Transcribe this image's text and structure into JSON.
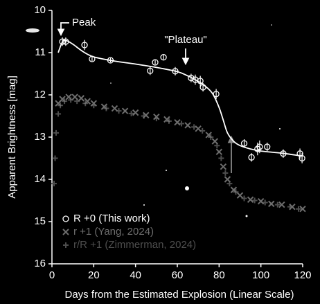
{
  "chart_data": {
    "type": "scatter",
    "xlabel": "Days from the Estimated Explosion (Linear Scale)",
    "ylabel": "Apparent Brightness [mag]",
    "xlim": [
      0,
      120
    ],
    "xticks": [
      0,
      20,
      40,
      60,
      80,
      100,
      120
    ],
    "ylim": [
      16,
      10
    ],
    "yticks": [
      10,
      11,
      12,
      13,
      14,
      15,
      16
    ],
    "annotations": [
      "Peak",
      "\"Plateau\""
    ],
    "series": [
      {
        "name": "R +0 (This work)",
        "marker": "circle",
        "color": "#ffffff",
        "x": [
          5,
          6.6,
          15.6,
          19.2,
          28,
          47,
          49.4,
          53.4,
          59,
          66.6,
          68.6,
          71,
          72.3,
          78.6,
          92,
          95.5,
          98.4,
          99.4,
          103,
          110.7,
          118.7,
          119.7
        ],
        "values": [
          10.74,
          10.74,
          10.82,
          11.15,
          11.18,
          11.43,
          11.23,
          11.11,
          11.44,
          11.6,
          11.64,
          11.67,
          11.82,
          11.98,
          13.15,
          13.48,
          13.28,
          13.23,
          13.23,
          13.39,
          13.39,
          13.5
        ],
        "errors": [
          0.1,
          0.1,
          0.12,
          0.05,
          0.05,
          0.1,
          0.05,
          0.05,
          0.1,
          0.1,
          0.12,
          0.12,
          0.1,
          0.12,
          0.1,
          0.1,
          0.15,
          0.15,
          0.1,
          0.1,
          0.12,
          0.12
        ]
      },
      {
        "name": "r  +1 (Yang, 2024)",
        "marker": "x",
        "color": "#6e6e6e",
        "x": [
          3,
          5,
          8,
          11,
          14,
          17,
          20,
          25,
          30,
          35,
          40,
          45,
          50,
          55,
          60,
          65,
          70,
          75,
          78,
          80,
          82,
          84,
          87,
          90,
          95,
          100,
          105,
          110,
          115,
          120
        ],
        "values": [
          12.2,
          12.1,
          12.05,
          12.05,
          12.08,
          12.15,
          12.2,
          12.28,
          12.32,
          12.38,
          12.42,
          12.48,
          12.52,
          12.58,
          12.65,
          12.72,
          12.8,
          12.95,
          13.1,
          13.35,
          13.7,
          14.0,
          14.25,
          14.38,
          14.48,
          14.52,
          14.58,
          14.6,
          14.65,
          14.7
        ]
      },
      {
        "name": "r/R +1 (Zimmerman, 2024)",
        "marker": "plus",
        "color": "#4e4e4e",
        "x": [
          1,
          1.5,
          2,
          3,
          4,
          6,
          9,
          12,
          16,
          20,
          26,
          32,
          38,
          44,
          50,
          56,
          62,
          68,
          72,
          76,
          79,
          81,
          83,
          85,
          88,
          92,
          97,
          102,
          108,
          114,
          118
        ],
        "values": [
          14.1,
          13.5,
          12.9,
          12.45,
          12.25,
          12.15,
          12.12,
          12.15,
          12.2,
          12.25,
          12.32,
          12.38,
          12.44,
          12.5,
          12.56,
          12.62,
          12.68,
          12.76,
          12.85,
          13.0,
          13.2,
          13.5,
          13.85,
          14.1,
          14.3,
          14.45,
          14.5,
          14.55,
          14.6,
          14.65,
          14.7
        ]
      }
    ],
    "fit": {
      "color": "#ffffff",
      "x": [
        3,
        5,
        7,
        10,
        15,
        20,
        30,
        40,
        50,
        60,
        65,
        70,
        74,
        77,
        80,
        82,
        84,
        87,
        90,
        95,
        100,
        110,
        120
      ],
      "values": [
        11.0,
        10.75,
        10.72,
        10.8,
        10.98,
        11.1,
        11.2,
        11.27,
        11.35,
        11.45,
        11.55,
        11.68,
        11.82,
        11.98,
        12.3,
        12.6,
        12.9,
        13.1,
        13.2,
        13.28,
        13.33,
        13.38,
        13.45
      ]
    }
  }
}
